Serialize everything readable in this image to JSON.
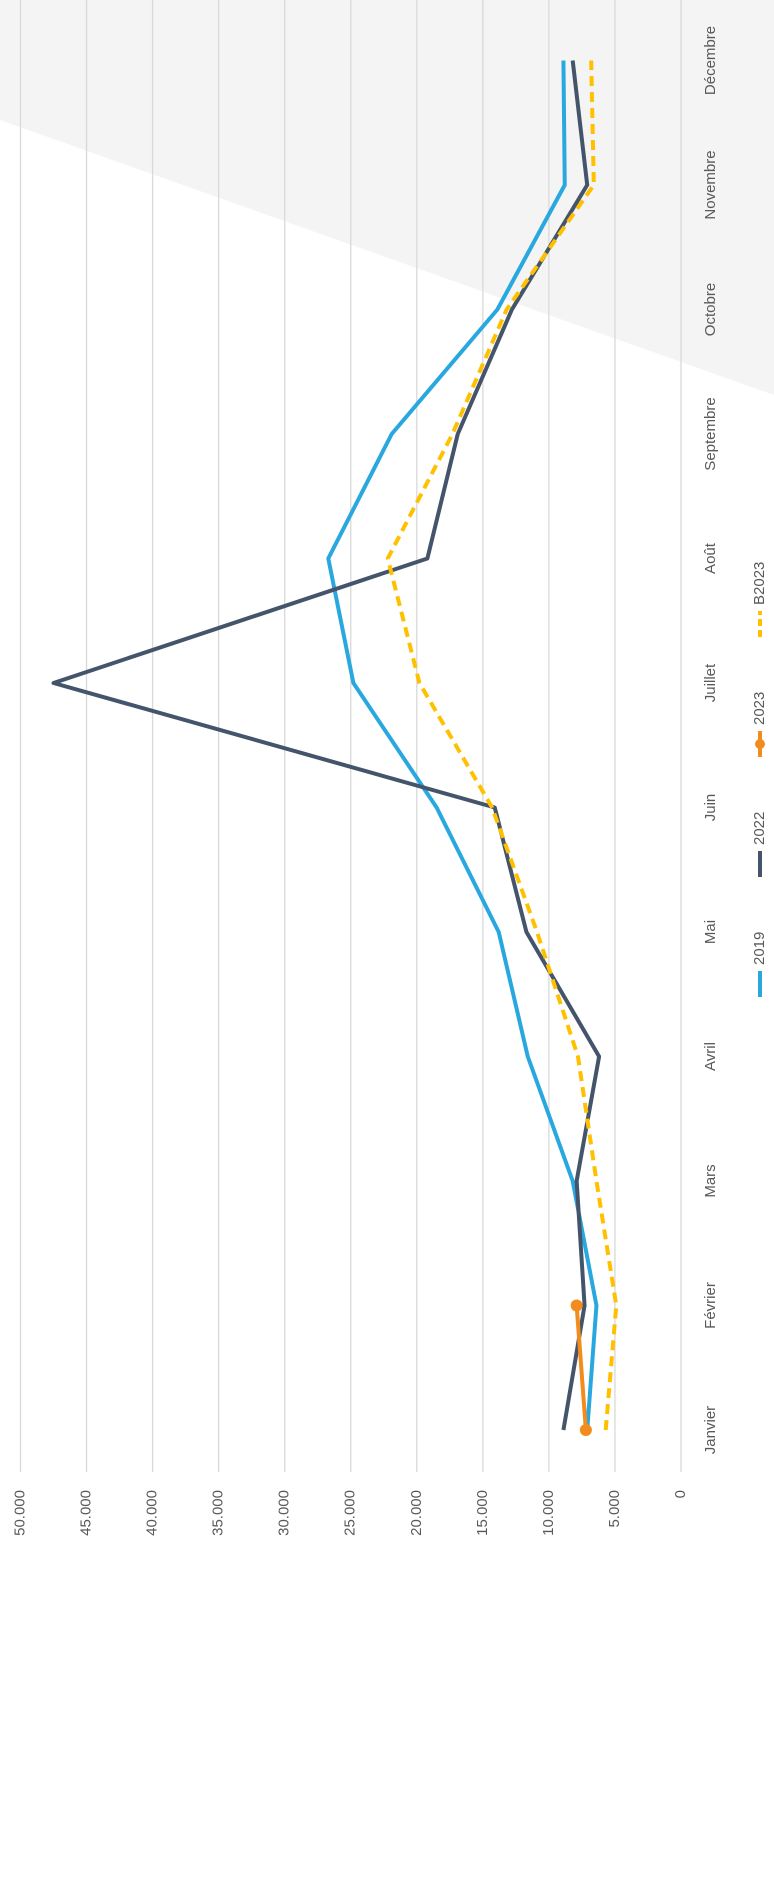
{
  "chart_data": {
    "type": "line",
    "categories": [
      "Janvier",
      "Février",
      "Mars",
      "Avril",
      "Mai",
      "Juin",
      "Juillet",
      "Août",
      "Septembre",
      "Octobre",
      "Novembre",
      "Décembre"
    ],
    "series": [
      {
        "name": "2019",
        "color": "#29a8df",
        "values": [
          7100,
          6400,
          8200,
          11600,
          13800,
          18500,
          24800,
          26700,
          21900,
          13900,
          8800,
          8900
        ]
      },
      {
        "name": "2022",
        "color": "#44546a",
        "values": [
          8900,
          7300,
          7900,
          6200,
          11700,
          14100,
          47500,
          19200,
          16900,
          12800,
          7100,
          8200
        ]
      },
      {
        "name": "2023",
        "color": "#f28c1c",
        "marker": true,
        "values": [
          7200,
          7900,
          null,
          null,
          null,
          null,
          null,
          null,
          null,
          null,
          null,
          null
        ]
      },
      {
        "name": "B2023",
        "color": "#ffc000",
        "dashed": true,
        "values": [
          5700,
          4900,
          6400,
          7800,
          10900,
          14300,
          19800,
          22200,
          17300,
          13200,
          6600,
          6800
        ]
      }
    ],
    "ylim": [
      0,
      50000
    ],
    "yticks": [
      0,
      {
        "value": 5000,
        "label": "5.000"
      },
      {
        "value": 10000,
        "label": "10.000"
      },
      {
        "value": 15000,
        "label": "15.000"
      },
      {
        "value": 20000,
        "label": "20.000"
      },
      {
        "value": 25000,
        "label": "25.000"
      },
      {
        "value": 30000,
        "label": "30.000"
      },
      {
        "value": 35000,
        "label": "35.000"
      },
      {
        "value": 40000,
        "label": "40.000"
      },
      {
        "value": 45000,
        "label": "45.000"
      },
      {
        "value": 50000,
        "label": "50.000"
      }
    ],
    "grid": true,
    "legend": "bottom"
  }
}
